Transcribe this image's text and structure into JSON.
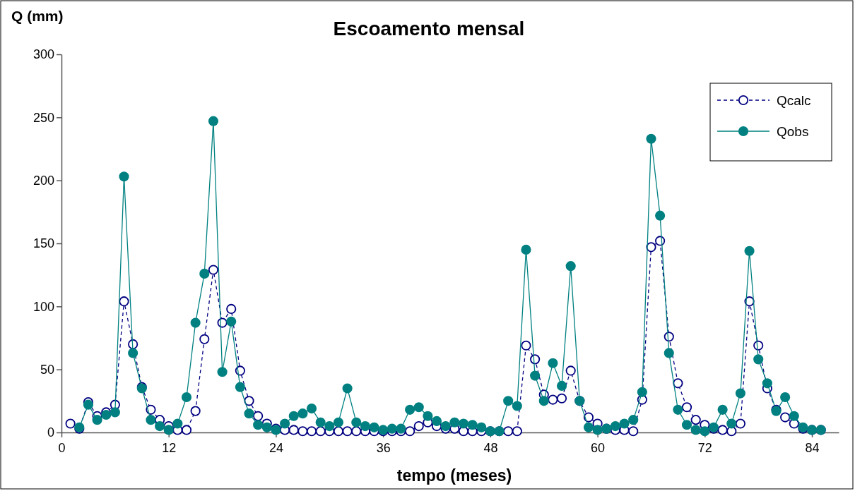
{
  "chart_data": {
    "type": "line",
    "title": "Escoamento mensal",
    "xlabel": "tempo (meses)",
    "ylabel": "Q (mm)",
    "x": [
      1,
      2,
      3,
      4,
      5,
      6,
      7,
      8,
      9,
      10,
      11,
      12,
      13,
      14,
      15,
      16,
      17,
      18,
      19,
      20,
      21,
      22,
      23,
      24,
      25,
      26,
      27,
      28,
      29,
      30,
      31,
      32,
      33,
      34,
      35,
      36,
      37,
      38,
      39,
      40,
      41,
      42,
      43,
      44,
      45,
      46,
      47,
      48,
      49,
      50,
      51,
      52,
      53,
      54,
      55,
      56,
      57,
      58,
      59,
      60,
      61,
      62,
      63,
      64,
      65,
      66,
      67,
      68,
      69,
      70,
      71,
      72,
      73,
      74,
      75,
      76,
      77,
      78,
      79,
      80,
      81,
      82,
      83,
      84,
      85
    ],
    "xlim": [
      0,
      87
    ],
    "xticks": [
      0,
      12,
      24,
      36,
      48,
      60,
      72,
      84
    ],
    "ylim": [
      0,
      300
    ],
    "yticks": [
      0,
      50,
      100,
      150,
      200,
      250,
      300
    ],
    "grid": false,
    "legend": "top right",
    "marker": "circle",
    "series": [
      {
        "name": "Qcalc",
        "color": "#000080",
        "line_style": "dashed",
        "values": [
          7,
          3,
          24,
          13,
          16,
          22,
          104,
          70,
          36,
          18,
          10,
          5,
          2,
          2,
          17,
          74,
          129,
          87,
          98,
          49,
          25,
          13,
          7,
          3,
          2,
          2,
          1,
          1,
          1,
          1,
          1,
          1,
          1,
          1,
          1,
          1,
          1,
          1,
          1,
          5,
          8,
          5,
          3,
          3,
          1,
          1,
          1,
          1,
          1,
          1,
          1,
          69,
          58,
          30,
          26,
          27,
          49,
          25,
          12,
          7,
          3,
          2,
          2,
          1,
          26,
          147,
          152,
          76,
          39,
          20,
          10,
          6,
          3,
          2,
          1,
          7,
          104,
          69,
          35,
          18,
          12,
          7,
          3,
          2,
          2
        ]
      },
      {
        "name": "Qobs",
        "color": "#008080",
        "line_style": "solid",
        "values": [
          null,
          4,
          22,
          10,
          14,
          16,
          203,
          63,
          35,
          10,
          5,
          2,
          7,
          28,
          87,
          126,
          247,
          48,
          88,
          36,
          15,
          6,
          4,
          2,
          7,
          13,
          15,
          19,
          8,
          5,
          8,
          35,
          8,
          5,
          4,
          2,
          3,
          3,
          18,
          20,
          13,
          9,
          5,
          8,
          7,
          6,
          4,
          1,
          1,
          25,
          21,
          145,
          45,
          25,
          55,
          37,
          132,
          25,
          4,
          2,
          3,
          5,
          7,
          10,
          32,
          233,
          172,
          63,
          18,
          6,
          2,
          1,
          4,
          18,
          7,
          31,
          144,
          58,
          39,
          17,
          28,
          13,
          4,
          2,
          2
        ]
      }
    ]
  }
}
